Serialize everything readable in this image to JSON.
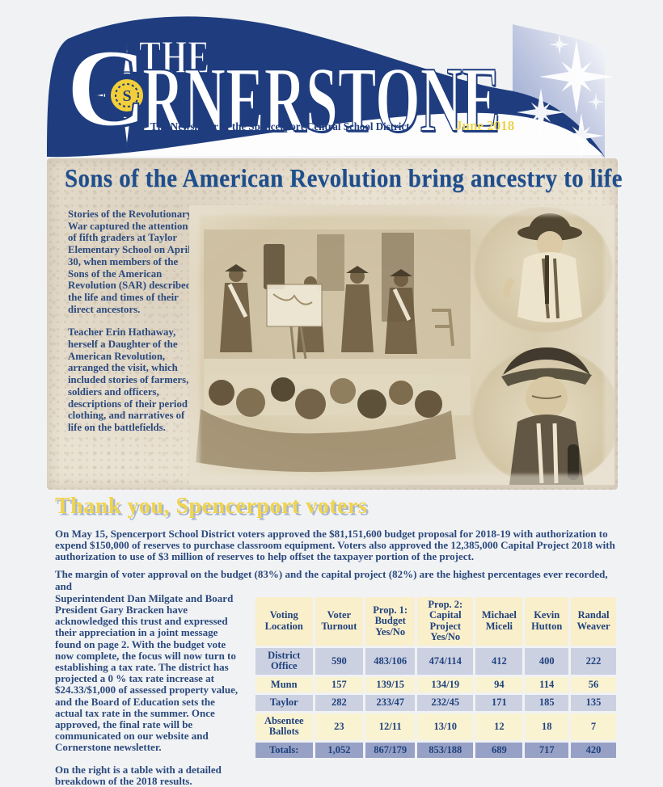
{
  "banner": {
    "the": "THE",
    "title_c": "C",
    "title_rest": "RNERSTONE",
    "tagline": "The Newsletter of the Spencerport Central School District",
    "issue": "June 2018",
    "logo_letter": "S"
  },
  "article": {
    "headline": "Sons of the American Revolution bring ancestry to life",
    "p1": "Stories of the Revolutionary War captured the attention of fifth graders at Taylor Elementary School on April 30, when members of the Sons of the American Revolution (SAR) described the life and times of their direct ancestors.",
    "p2": "Teacher Erin Hathaway, herself a Daughter of the American Revolution, arranged the visit, which included stories of farmers, soldiers and officers, descriptions of their period clothing, and narratives of life on the battlefields."
  },
  "voters": {
    "heading": "Thank you, Spencerport voters",
    "p1": "On May 15, Spencerport School District voters approved the $81,151,600 budget proposal for 2018-19 with authorization to expend $150,000 of reserves to purchase classroom equipment. Voters also approved the 12,385,000 Capital Project 2018 with authorization to use of $3 million of reserves to help offset the taxpayer portion of the project.",
    "p2_intro": "The margin of voter approval on the budget (83%) and the capital project (82%) are the highest percentages ever recorded, and",
    "p2_rest": "Superintendent Dan Milgate and Board President Gary Bracken have acknowledged this trust and expressed their appreciation in a joint message found on page 2. With the budget vote now complete, the focus will now turn to establishing a tax rate. The district has projected a 0 % tax rate increase at $24.33/$1,000 of assessed property value, and the Board of Education sets the actual tax rate in the summer. Once approved, the final rate will be communicated on our website and Cornerstone newsletter.",
    "p3": "On the right is a table with a detailed breakdown of the 2018 results.",
    "table": {
      "columns": [
        "Voting Location",
        "Voter Turnout",
        "Prop. 1: Budget Yes/No",
        "Prop. 2: Capital Project Yes/No",
        "Michael Miceli",
        "Kevin Hutton",
        "Randal Weaver"
      ],
      "rows": [
        {
          "location": "District Office",
          "values": [
            "590",
            "483/106",
            "474/114",
            "412",
            "400",
            "222"
          ],
          "is_total": false
        },
        {
          "location": "Munn",
          "values": [
            "157",
            "139/15",
            "134/19",
            "94",
            "114",
            "56"
          ],
          "is_total": false
        },
        {
          "location": "Taylor",
          "values": [
            "282",
            "233/47",
            "232/45",
            "171",
            "185",
            "135"
          ],
          "is_total": false
        },
        {
          "location": "Absentee Ballots",
          "values": [
            "23",
            "12/11",
            "13/10",
            "12",
            "18",
            "7"
          ],
          "is_total": false
        },
        {
          "location": "Totals:",
          "values": [
            "1,052",
            "867/179",
            "853/188",
            "689",
            "717",
            "420"
          ],
          "is_total": true
        }
      ]
    }
  },
  "colors": {
    "navy": "#1f3d7e",
    "headline_blue": "#1e4e8c",
    "body_text": "#2b4a7d",
    "gold_heading": "#f1d44c",
    "issue_gold": "#e9d44e",
    "header_cell": "#faefcb",
    "row_lav": "#ccd1e2",
    "row_cream": "#faf3d2",
    "row_total": "#97a1c6",
    "parchment": "#e9e1d2",
    "page_bg": "#f1f2f4"
  }
}
